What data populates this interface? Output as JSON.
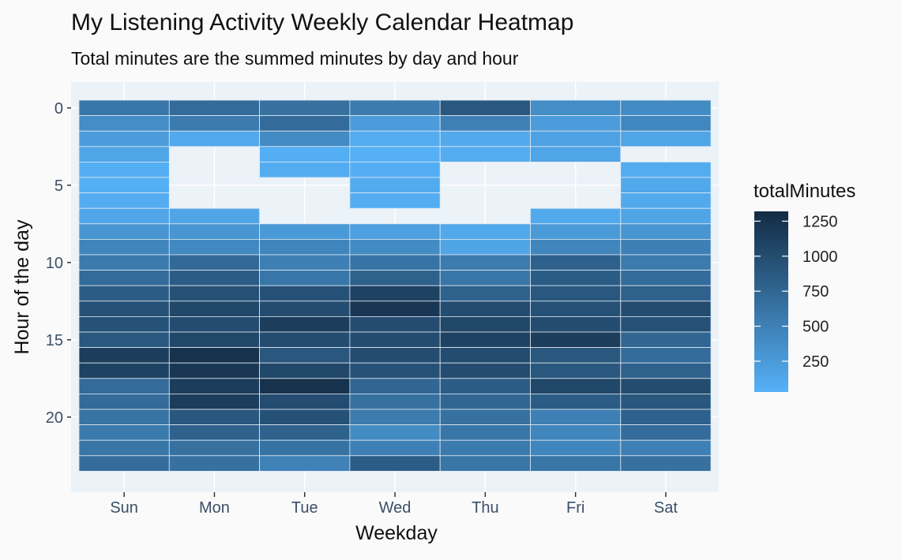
{
  "chart_data": {
    "type": "heatmap",
    "title": "My Listening Activity Weekly Calendar Heatmap",
    "subtitle": "Total minutes are the summed minutes by day and hour",
    "xlabel": "Weekday",
    "ylabel": "Hour of the day",
    "x": [
      "Sun",
      "Mon",
      "Tue",
      "Wed",
      "Thu",
      "Fri",
      "Sat"
    ],
    "y": [
      0,
      1,
      2,
      3,
      4,
      5,
      6,
      7,
      8,
      9,
      10,
      11,
      12,
      13,
      14,
      15,
      16,
      17,
      18,
      19,
      20,
      21,
      22,
      23
    ],
    "y_ticks": [
      0,
      5,
      10,
      15,
      20
    ],
    "y_reversed": true,
    "grid": true,
    "legend": {
      "title": "totalMinutes",
      "placement": "right",
      "ticks": [
        250,
        500,
        750,
        1000,
        1250
      ],
      "range": [
        30,
        1320
      ],
      "color_low": "#56b1f7",
      "color_high": "#132b43"
    },
    "values": {
      "Sun": [
        600,
        380,
        230,
        150,
        60,
        50,
        70,
        140,
        300,
        450,
        560,
        700,
        850,
        950,
        950,
        900,
        1150,
        1100,
        700,
        700,
        630,
        560,
        600,
        680
      ],
      "Mon": [
        700,
        550,
        120,
        null,
        null,
        null,
        null,
        150,
        300,
        420,
        720,
        850,
        950,
        1050,
        1000,
        1050,
        1250,
        1200,
        1150,
        1150,
        900,
        800,
        650,
        650
      ],
      "Tue": [
        650,
        700,
        400,
        60,
        80,
        null,
        null,
        null,
        250,
        450,
        500,
        600,
        950,
        1000,
        1150,
        1000,
        900,
        1050,
        1250,
        1000,
        950,
        800,
        640,
        480
      ],
      "Wed": [
        550,
        230,
        80,
        40,
        60,
        90,
        70,
        null,
        200,
        400,
        620,
        800,
        1100,
        1200,
        1000,
        1000,
        1000,
        950,
        750,
        650,
        550,
        400,
        500,
        850
      ],
      "Thu": [
        900,
        500,
        100,
        70,
        null,
        null,
        null,
        null,
        120,
        150,
        550,
        600,
        800,
        1000,
        1050,
        1100,
        1000,
        1000,
        850,
        750,
        650,
        600,
        560,
        600
      ],
      "Fri": [
        380,
        230,
        180,
        150,
        null,
        null,
        null,
        100,
        250,
        450,
        800,
        850,
        900,
        950,
        1000,
        1150,
        900,
        900,
        1050,
        850,
        500,
        450,
        450,
        600
      ],
      "Sat": [
        400,
        430,
        150,
        null,
        80,
        120,
        100,
        150,
        300,
        500,
        550,
        700,
        800,
        1000,
        950,
        750,
        700,
        800,
        1000,
        900,
        800,
        700,
        500,
        650
      ]
    }
  }
}
